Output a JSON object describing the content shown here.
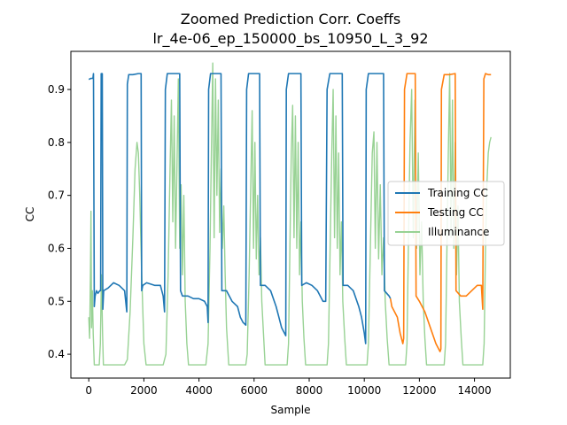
{
  "chart_data": {
    "type": "line",
    "title": "Zoomed Prediction Corr. Coeffs",
    "subtitle": "lr_4e-06_ep_150000_bs_10950_L_3_92",
    "xlabel": "Sample",
    "ylabel": "CC",
    "xlim": [
      -650,
      15300
    ],
    "ylim": [
      0.355,
      0.972
    ],
    "xticks": [
      0,
      2000,
      4000,
      6000,
      8000,
      10000,
      12000,
      14000
    ],
    "xtick_labels": [
      "0",
      "2000",
      "4000",
      "6000",
      "8000",
      "10000",
      "12000",
      "14000"
    ],
    "yticks": [
      0.4,
      0.5,
      0.6,
      0.7,
      0.8,
      0.9
    ],
    "ytick_labels": [
      "0.4",
      "0.5",
      "0.6",
      "0.7",
      "0.8",
      "0.9"
    ],
    "grid": false,
    "legend_position": "center-right",
    "series": [
      {
        "name": "Training CC",
        "color": "#1f77b4",
        "points": [
          [
            0,
            0.919
          ],
          [
            80,
            0.921
          ],
          [
            150,
            0.921
          ],
          [
            170,
            0.93
          ],
          [
            200,
            0.49
          ],
          [
            230,
            0.51
          ],
          [
            280,
            0.52
          ],
          [
            330,
            0.515
          ],
          [
            400,
            0.52
          ],
          [
            430,
            0.52
          ],
          [
            450,
            0.93
          ],
          [
            490,
            0.93
          ],
          [
            510,
            0.485
          ],
          [
            540,
            0.52
          ],
          [
            700,
            0.525
          ],
          [
            900,
            0.535
          ],
          [
            1100,
            0.53
          ],
          [
            1300,
            0.52
          ],
          [
            1380,
            0.48
          ],
          [
            1400,
            0.91
          ],
          [
            1450,
            0.928
          ],
          [
            1600,
            0.928
          ],
          [
            1800,
            0.93
          ],
          [
            1900,
            0.93
          ],
          [
            1920,
            0.52
          ],
          [
            1960,
            0.53
          ],
          [
            2100,
            0.535
          ],
          [
            2400,
            0.53
          ],
          [
            2600,
            0.53
          ],
          [
            2700,
            0.51
          ],
          [
            2750,
            0.48
          ],
          [
            2780,
            0.9
          ],
          [
            2850,
            0.93
          ],
          [
            3000,
            0.93
          ],
          [
            3300,
            0.93
          ],
          [
            3330,
            0.52
          ],
          [
            3400,
            0.51
          ],
          [
            3600,
            0.51
          ],
          [
            3800,
            0.505
          ],
          [
            4000,
            0.505
          ],
          [
            4200,
            0.5
          ],
          [
            4300,
            0.49
          ],
          [
            4330,
            0.46
          ],
          [
            4350,
            0.9
          ],
          [
            4420,
            0.93
          ],
          [
            4600,
            0.93
          ],
          [
            4800,
            0.93
          ],
          [
            4830,
            0.52
          ],
          [
            5000,
            0.52
          ],
          [
            5200,
            0.5
          ],
          [
            5400,
            0.49
          ],
          [
            5500,
            0.47
          ],
          [
            5600,
            0.46
          ],
          [
            5700,
            0.455
          ],
          [
            5730,
            0.9
          ],
          [
            5800,
            0.93
          ],
          [
            6000,
            0.93
          ],
          [
            6200,
            0.93
          ],
          [
            6230,
            0.53
          ],
          [
            6400,
            0.53
          ],
          [
            6600,
            0.52
          ],
          [
            6800,
            0.49
          ],
          [
            6900,
            0.47
          ],
          [
            7000,
            0.45
          ],
          [
            7100,
            0.44
          ],
          [
            7150,
            0.435
          ],
          [
            7170,
            0.9
          ],
          [
            7250,
            0.93
          ],
          [
            7500,
            0.93
          ],
          [
            7700,
            0.93
          ],
          [
            7730,
            0.53
          ],
          [
            7900,
            0.535
          ],
          [
            8100,
            0.53
          ],
          [
            8300,
            0.52
          ],
          [
            8500,
            0.5
          ],
          [
            8600,
            0.5
          ],
          [
            8650,
            0.9
          ],
          [
            8750,
            0.93
          ],
          [
            9000,
            0.93
          ],
          [
            9200,
            0.93
          ],
          [
            9230,
            0.53
          ],
          [
            9400,
            0.53
          ],
          [
            9600,
            0.52
          ],
          [
            9800,
            0.49
          ],
          [
            9900,
            0.47
          ],
          [
            10000,
            0.44
          ],
          [
            10050,
            0.42
          ],
          [
            10070,
            0.9
          ],
          [
            10150,
            0.93
          ],
          [
            10500,
            0.93
          ],
          [
            10700,
            0.93
          ],
          [
            10730,
            0.52
          ],
          [
            10900,
            0.51
          ],
          [
            10950,
            0.505
          ]
        ]
      },
      {
        "name": "Testing CC",
        "color": "#ff7f0e",
        "points": [
          [
            10950,
            0.505
          ],
          [
            11000,
            0.49
          ],
          [
            11200,
            0.47
          ],
          [
            11300,
            0.44
          ],
          [
            11400,
            0.42
          ],
          [
            11430,
            0.43
          ],
          [
            11460,
            0.9
          ],
          [
            11550,
            0.93
          ],
          [
            11700,
            0.93
          ],
          [
            11850,
            0.93
          ],
          [
            11880,
            0.51
          ],
          [
            12000,
            0.5
          ],
          [
            12200,
            0.48
          ],
          [
            12400,
            0.45
          ],
          [
            12600,
            0.42
          ],
          [
            12750,
            0.405
          ],
          [
            12780,
            0.41
          ],
          [
            12800,
            0.9
          ],
          [
            12900,
            0.928
          ],
          [
            13100,
            0.928
          ],
          [
            13300,
            0.93
          ],
          [
            13330,
            0.52
          ],
          [
            13500,
            0.51
          ],
          [
            13700,
            0.51
          ],
          [
            13900,
            0.52
          ],
          [
            14100,
            0.53
          ],
          [
            14250,
            0.53
          ],
          [
            14300,
            0.485
          ],
          [
            14340,
            0.92
          ],
          [
            14400,
            0.93
          ],
          [
            14500,
            0.928
          ],
          [
            14600,
            0.928
          ]
        ]
      },
      {
        "name": "Illuminance",
        "color": "#98d294",
        "points": [
          [
            0,
            0.47
          ],
          [
            30,
            0.43
          ],
          [
            60,
            0.55
          ],
          [
            80,
            0.67
          ],
          [
            100,
            0.45
          ],
          [
            130,
            0.52
          ],
          [
            160,
            0.44
          ],
          [
            200,
            0.38
          ],
          [
            350,
            0.38
          ],
          [
            380,
            0.38
          ],
          [
            420,
            0.42
          ],
          [
            460,
            0.55
          ],
          [
            500,
            0.44
          ],
          [
            530,
            0.38
          ],
          [
            1300,
            0.38
          ],
          [
            1400,
            0.39
          ],
          [
            1500,
            0.48
          ],
          [
            1600,
            0.62
          ],
          [
            1680,
            0.75
          ],
          [
            1750,
            0.8
          ],
          [
            1800,
            0.78
          ],
          [
            1850,
            0.7
          ],
          [
            1920,
            0.55
          ],
          [
            2000,
            0.42
          ],
          [
            2080,
            0.38
          ],
          [
            2700,
            0.38
          ],
          [
            2800,
            0.4
          ],
          [
            2880,
            0.55
          ],
          [
            2950,
            0.75
          ],
          [
            3000,
            0.88
          ],
          [
            3050,
            0.65
          ],
          [
            3100,
            0.85
          ],
          [
            3150,
            0.6
          ],
          [
            3200,
            0.75
          ],
          [
            3250,
            0.92
          ],
          [
            3300,
            0.6
          ],
          [
            3350,
            0.72
          ],
          [
            3400,
            0.55
          ],
          [
            3450,
            0.7
          ],
          [
            3500,
            0.5
          ],
          [
            3560,
            0.42
          ],
          [
            3620,
            0.38
          ],
          [
            4250,
            0.38
          ],
          [
            4330,
            0.42
          ],
          [
            4400,
            0.6
          ],
          [
            4450,
            0.78
          ],
          [
            4500,
            0.95
          ],
          [
            4550,
            0.62
          ],
          [
            4600,
            0.92
          ],
          [
            4650,
            0.7
          ],
          [
            4700,
            0.88
          ],
          [
            4750,
            0.63
          ],
          [
            4800,
            0.75
          ],
          [
            4850,
            0.6
          ],
          [
            4900,
            0.68
          ],
          [
            4950,
            0.55
          ],
          [
            5000,
            0.45
          ],
          [
            5080,
            0.38
          ],
          [
            5700,
            0.38
          ],
          [
            5750,
            0.4
          ],
          [
            5820,
            0.55
          ],
          [
            5880,
            0.72
          ],
          [
            5930,
            0.86
          ],
          [
            5980,
            0.6
          ],
          [
            6030,
            0.8
          ],
          [
            6080,
            0.58
          ],
          [
            6130,
            0.7
          ],
          [
            6180,
            0.55
          ],
          [
            6230,
            0.62
          ],
          [
            6280,
            0.5
          ],
          [
            6340,
            0.44
          ],
          [
            6400,
            0.38
          ],
          [
            7200,
            0.38
          ],
          [
            7250,
            0.42
          ],
          [
            7300,
            0.6
          ],
          [
            7350,
            0.78
          ],
          [
            7400,
            0.87
          ],
          [
            7450,
            0.62
          ],
          [
            7500,
            0.85
          ],
          [
            7550,
            0.6
          ],
          [
            7600,
            0.8
          ],
          [
            7650,
            0.55
          ],
          [
            7700,
            0.65
          ],
          [
            7750,
            0.5
          ],
          [
            7810,
            0.43
          ],
          [
            7870,
            0.38
          ],
          [
            8650,
            0.38
          ],
          [
            8700,
            0.42
          ],
          [
            8760,
            0.6
          ],
          [
            8820,
            0.78
          ],
          [
            8870,
            0.9
          ],
          [
            8920,
            0.62
          ],
          [
            8970,
            0.85
          ],
          [
            9020,
            0.6
          ],
          [
            9070,
            0.78
          ],
          [
            9120,
            0.55
          ],
          [
            9170,
            0.65
          ],
          [
            9220,
            0.5
          ],
          [
            9290,
            0.43
          ],
          [
            9350,
            0.38
          ],
          [
            10100,
            0.38
          ],
          [
            10150,
            0.42
          ],
          [
            10220,
            0.6
          ],
          [
            10290,
            0.78
          ],
          [
            10350,
            0.82
          ],
          [
            10400,
            0.6
          ],
          [
            10460,
            0.8
          ],
          [
            10520,
            0.58
          ],
          [
            10580,
            0.72
          ],
          [
            10640,
            0.55
          ],
          [
            10700,
            0.62
          ],
          [
            10760,
            0.5
          ],
          [
            10830,
            0.43
          ],
          [
            10900,
            0.38
          ],
          [
            11500,
            0.38
          ],
          [
            11550,
            0.42
          ],
          [
            11600,
            0.6
          ],
          [
            11660,
            0.8
          ],
          [
            11720,
            0.9
          ],
          [
            11780,
            0.62
          ],
          [
            11840,
            0.88
          ],
          [
            11900,
            0.6
          ],
          [
            11960,
            0.78
          ],
          [
            12020,
            0.55
          ],
          [
            12080,
            0.65
          ],
          [
            12140,
            0.5
          ],
          [
            12200,
            0.43
          ],
          [
            12260,
            0.38
          ],
          [
            12900,
            0.38
          ],
          [
            12950,
            0.42
          ],
          [
            13000,
            0.6
          ],
          [
            13050,
            0.78
          ],
          [
            13100,
            0.93
          ],
          [
            13150,
            0.62
          ],
          [
            13200,
            0.88
          ],
          [
            13250,
            0.6
          ],
          [
            13300,
            0.8
          ],
          [
            13350,
            0.55
          ],
          [
            13400,
            0.68
          ],
          [
            13450,
            0.5
          ],
          [
            13520,
            0.43
          ],
          [
            13580,
            0.38
          ],
          [
            14300,
            0.38
          ],
          [
            14350,
            0.42
          ],
          [
            14400,
            0.6
          ],
          [
            14450,
            0.72
          ],
          [
            14500,
            0.78
          ],
          [
            14550,
            0.8
          ],
          [
            14600,
            0.81
          ]
        ]
      }
    ]
  }
}
